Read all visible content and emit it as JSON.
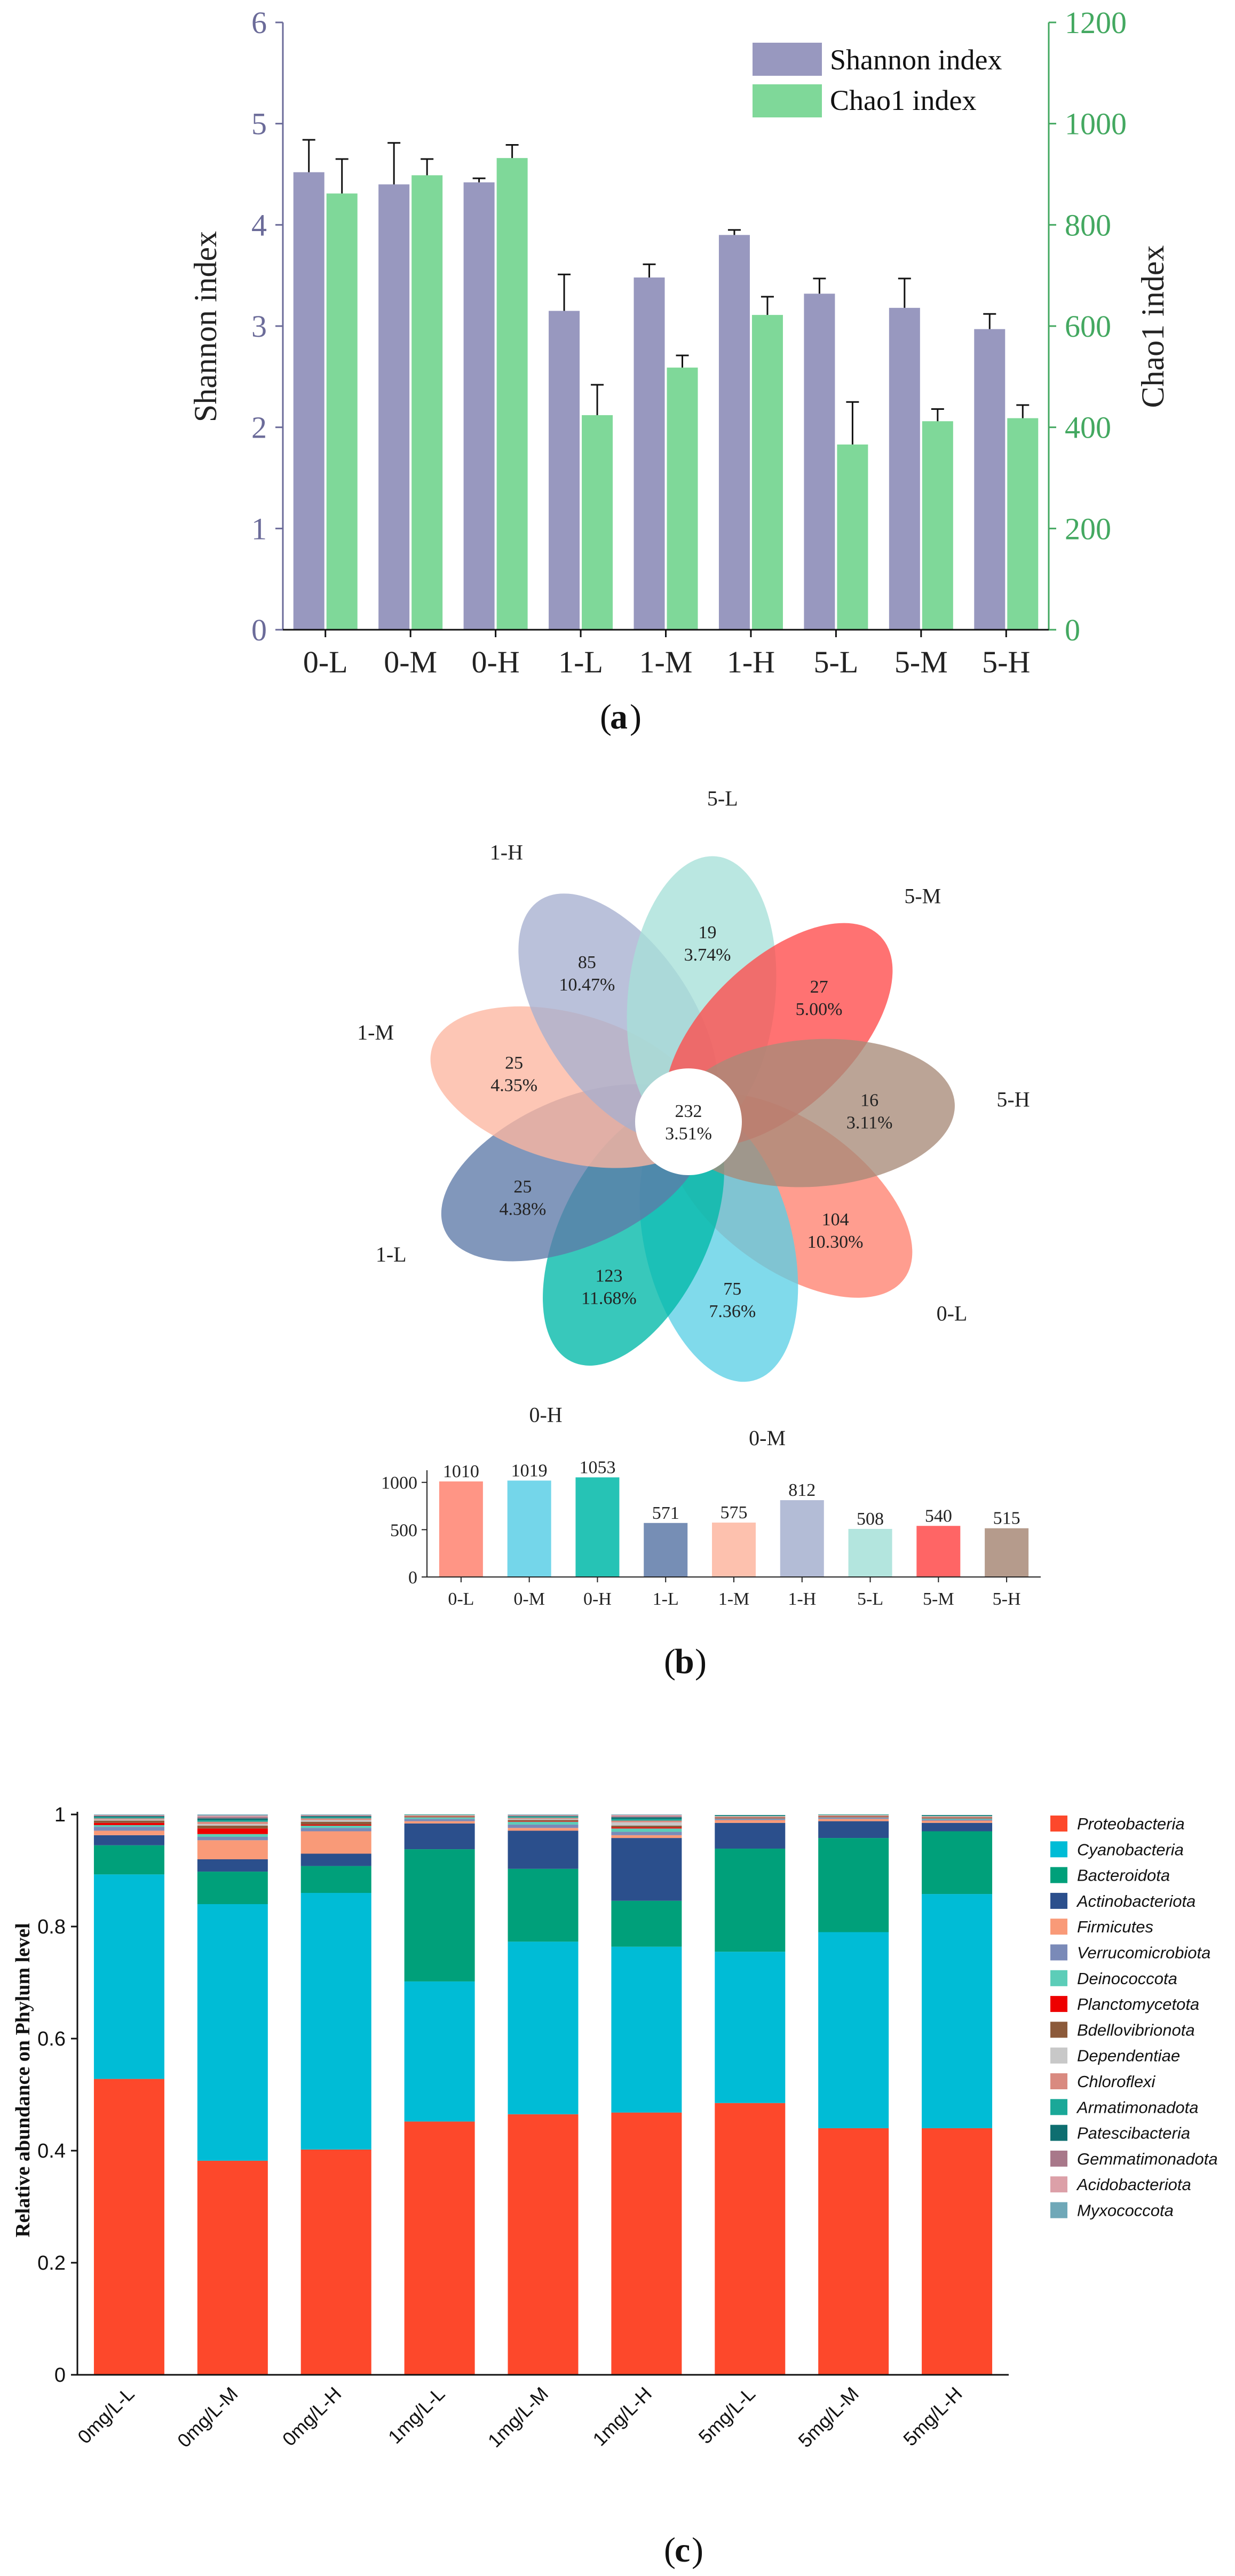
{
  "panel_labels": {
    "a": "a",
    "b": "b",
    "c": "c"
  },
  "chart_data": [
    {
      "type": "bar",
      "panel": "a",
      "categories": [
        "0-L",
        "0-M",
        "0-H",
        "1-L",
        "1-M",
        "1-H",
        "5-L",
        "5-M",
        "5-H"
      ],
      "ylabel": "Shannon index",
      "y2label": "Chao1 index",
      "ylim": [
        0,
        6
      ],
      "y2lim": [
        0,
        1200
      ],
      "yticks": [
        "0",
        "1",
        "2",
        "3",
        "4",
        "5",
        "6"
      ],
      "y2ticks": [
        "0",
        "200",
        "400",
        "600",
        "800",
        "1000",
        "1200"
      ],
      "legend_position": "top-right",
      "series": [
        {
          "name": "Shannon index",
          "axis": "left",
          "color": "#9898bf",
          "values": [
            4.52,
            4.4,
            4.42,
            3.15,
            3.48,
            3.9,
            3.32,
            3.18,
            2.97
          ],
          "errors": [
            0.32,
            0.41,
            0.04,
            0.36,
            0.13,
            0.05,
            0.15,
            0.29,
            0.15
          ]
        },
        {
          "name": "Chao1 index",
          "axis": "right",
          "color": "#7fd899",
          "values": [
            862,
            898,
            932,
            424,
            518,
            622,
            366,
            412,
            418
          ],
          "errors": [
            68,
            32,
            26,
            60,
            24,
            36,
            84,
            24,
            26
          ]
        }
      ],
      "colors": {
        "left_axis": "#6b6b99",
        "right_axis": "#43a860"
      }
    },
    {
      "type": "venn-flower",
      "panel": "b",
      "core": {
        "count": "232",
        "percent": "3.51%"
      },
      "petals": [
        {
          "name": "0-L",
          "count": "104",
          "percent": "10.30%",
          "color": "#ff8270"
        },
        {
          "name": "0-M",
          "count": "75",
          "percent": "7.36%",
          "color": "#5ccfe6"
        },
        {
          "name": "0-H",
          "count": "123",
          "percent": "11.68%",
          "color": "#00b8a8"
        },
        {
          "name": "1-L",
          "count": "25",
          "percent": "4.38%",
          "color": "#5e7aa8"
        },
        {
          "name": "1-M",
          "count": "25",
          "percent": "4.35%",
          "color": "#fdb6a0"
        },
        {
          "name": "1-H",
          "count": "85",
          "percent": "10.47%",
          "color": "#a6b0cf"
        },
        {
          "name": "5-L",
          "count": "19",
          "percent": "3.74%",
          "color": "#a6e0d8"
        },
        {
          "name": "5-M",
          "count": "27",
          "percent": "5.00%",
          "color": "#ff4a4a"
        },
        {
          "name": "5-H",
          "count": "16",
          "percent": "3.11%",
          "color": "#a88a78"
        }
      ],
      "totals": {
        "type": "bar",
        "categories": [
          "0-L",
          "0-M",
          "0-H",
          "1-L",
          "1-M",
          "1-H",
          "5-L",
          "5-M",
          "5-H"
        ],
        "values": [
          1010,
          1019,
          1053,
          571,
          575,
          812,
          508,
          540,
          515
        ],
        "value_labels": [
          "1010",
          "1019",
          "1053",
          "571",
          "575",
          "812",
          "508",
          "540",
          "515"
        ],
        "ylim": [
          0,
          1100
        ],
        "yticks": [
          "0",
          "500",
          "1000"
        ]
      }
    },
    {
      "type": "stacked-bar",
      "panel": "c",
      "ylabel": "Relative abundance on Phylum level",
      "ylim": [
        0,
        1
      ],
      "yticks": [
        "0",
        "0.2",
        "0.4",
        "0.6",
        "0.8",
        "1"
      ],
      "categories": [
        "0mg/L-L",
        "0mg/L-M",
        "0mg/L-H",
        "1mg/L-L",
        "1mg/L-M",
        "1mg/L-H",
        "5mg/L-L",
        "5mg/L-M",
        "5mg/L-H"
      ],
      "legend_position": "right",
      "series": [
        {
          "name": "Proteobacteria",
          "color": "#fd482b",
          "values": [
            0.528,
            0.382,
            0.402,
            0.452,
            0.465,
            0.468,
            0.485,
            0.44,
            0.44
          ]
        },
        {
          "name": "Cyanobacteria",
          "color": "#00bcd6",
          "values": [
            0.365,
            0.458,
            0.458,
            0.25,
            0.308,
            0.296,
            0.27,
            0.35,
            0.418
          ]
        },
        {
          "name": "Bacteroidota",
          "color": "#00a07a",
          "values": [
            0.052,
            0.058,
            0.048,
            0.236,
            0.13,
            0.082,
            0.184,
            0.168,
            0.112
          ]
        },
        {
          "name": "Actinobacteriota",
          "color": "#2b4f8c",
          "values": [
            0.018,
            0.022,
            0.022,
            0.046,
            0.068,
            0.112,
            0.046,
            0.03,
            0.015
          ]
        },
        {
          "name": "Firmicutes",
          "color": "#f99a78",
          "values": [
            0.008,
            0.034,
            0.04,
            0.004,
            0.005,
            0.005,
            0.005,
            0.004,
            0.004
          ]
        },
        {
          "name": "Verrucomicrobiota",
          "color": "#7a8ab8",
          "values": [
            0.007,
            0.006,
            0.006,
            0.004,
            0.006,
            0.006,
            0.002,
            0.002,
            0.002
          ]
        },
        {
          "name": "Deinococcota",
          "color": "#5ccdb8",
          "values": [
            0.003,
            0.005,
            0.004,
            0.003,
            0.005,
            0.006,
            0.001,
            0.001,
            0.002
          ]
        },
        {
          "name": "Planctomycetota",
          "color": "#ee0000",
          "values": [
            0.004,
            0.01,
            0.002,
            0.001,
            0.001,
            0.002,
            0.001,
            0.001,
            0.001
          ]
        },
        {
          "name": "Bdellovibrionota",
          "color": "#8c5a3a",
          "values": [
            0.004,
            0.005,
            0.005,
            0.001,
            0.002,
            0.003,
            0.001,
            0.001,
            0.001
          ]
        },
        {
          "name": "Dependentiae",
          "color": "#c8c8c8",
          "values": [
            0.002,
            0.003,
            0.003,
            0.001,
            0.002,
            0.006,
            0.001,
            0.001,
            0.001
          ]
        },
        {
          "name": "Chloroflexi",
          "color": "#d98a80",
          "values": [
            0.002,
            0.004,
            0.003,
            0.001,
            0.002,
            0.003,
            0.001,
            0.001,
            0.001
          ]
        },
        {
          "name": "Armatimonadota",
          "color": "#1aa898",
          "values": [
            0.002,
            0.003,
            0.002,
            0.001,
            0.002,
            0.003,
            0.001,
            0.001,
            0.001
          ]
        },
        {
          "name": "Patescibacteria",
          "color": "#0e6e70",
          "values": [
            0.002,
            0.003,
            0.002,
            0.001,
            0.001,
            0.003,
            0.001,
            0.001,
            0.001
          ]
        },
        {
          "name": "Gemmatimonadota",
          "color": "#a8788a",
          "values": [
            0.001,
            0.003,
            0.001,
            0.001,
            0.001,
            0.002,
            0.0,
            0.0,
            0.0
          ]
        },
        {
          "name": "Acidobacteriota",
          "color": "#dca0a8",
          "values": [
            0.001,
            0.002,
            0.001,
            0.001,
            0.001,
            0.002,
            0.0,
            0.0,
            0.0
          ]
        },
        {
          "name": "Myxococcota",
          "color": "#6fa8b8",
          "values": [
            0.001,
            0.002,
            0.001,
            0.001,
            0.001,
            0.001,
            0.0,
            0.0,
            0.0
          ]
        }
      ]
    }
  ]
}
